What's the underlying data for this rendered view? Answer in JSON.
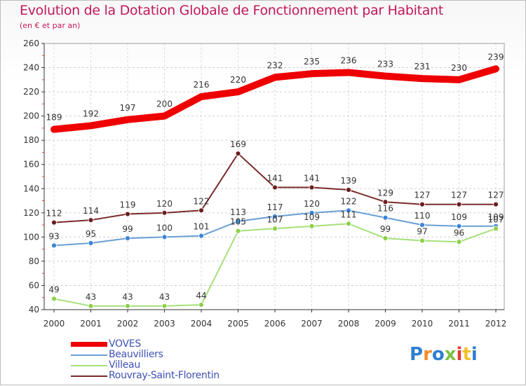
{
  "title": "Evolution de la Dotation Globale de Fonctionnement par Habitant",
  "subtitle": "(en € et par an)",
  "brand": {
    "text": "Proxiti",
    "colors": [
      "#2e7fd1",
      "#f28c28",
      "#2e7fd1",
      "#7cc243",
      "#e53935",
      "#f2c12e",
      "#2e7fd1"
    ]
  },
  "chart_data": {
    "type": "line",
    "title": "Evolution de la Dotation Globale de Fonctionnement par Habitant",
    "subtitle": "(en € et par an)",
    "xlabel": "",
    "ylabel": "",
    "x": [
      2000,
      2001,
      2002,
      2003,
      2004,
      2005,
      2006,
      2007,
      2008,
      2009,
      2010,
      2011,
      2012
    ],
    "x_labels": [
      "2000",
      "2001",
      "2002",
      "2003",
      "2004",
      "2005",
      "2006",
      "2007",
      "2008",
      "2009",
      "2010",
      "2011",
      "2012"
    ],
    "ylim": [
      40,
      260
    ],
    "yticks": [
      40,
      60,
      80,
      100,
      120,
      140,
      160,
      180,
      200,
      220,
      240,
      260
    ],
    "grid": true,
    "legend_position": "bottom-left",
    "series": [
      {
        "name": "VOVES",
        "color": "#ee0000",
        "markers": false,
        "values": [
          189,
          192,
          197,
          200,
          216,
          220,
          232,
          235,
          236,
          233,
          231,
          230,
          239
        ],
        "labels": [
          "189",
          "192",
          "197",
          "200",
          "216",
          "220",
          "232",
          "235",
          "236",
          "233",
          "231",
          "230",
          "239"
        ]
      },
      {
        "name": "Beauvilliers",
        "color": "#6a9fd4",
        "marker_color": "#3a86d6",
        "markers": true,
        "values": [
          93,
          95,
          99,
          100,
          101,
          113,
          117,
          120,
          122,
          116,
          110,
          109,
          109
        ],
        "labels": [
          "93",
          "95",
          "99",
          "100",
          "101",
          "113",
          "117",
          "120",
          "122",
          "116",
          "110",
          "109",
          "109"
        ]
      },
      {
        "name": "Villeau",
        "color": "#a6e07a",
        "marker_color": "#8ed04a",
        "markers": true,
        "values": [
          49,
          43,
          43,
          43,
          44,
          105,
          107,
          109,
          111,
          99,
          97,
          96,
          107
        ],
        "labels": [
          "49",
          "43",
          "43",
          "43",
          "44",
          "105",
          "107",
          "109",
          "111",
          "99",
          "97",
          "96",
          "107"
        ]
      },
      {
        "name": "Rouvray-Saint-Florentin",
        "color": "#7a2a2a",
        "marker_color": "#6b1f1f",
        "markers": true,
        "values": [
          112,
          114,
          119,
          120,
          122,
          169,
          141,
          141,
          139,
          129,
          127,
          127,
          127
        ],
        "labels": [
          "112",
          "114",
          "119",
          "120",
          "122",
          "169",
          "141",
          "141",
          "139",
          "129",
          "127",
          "127",
          "127"
        ]
      }
    ]
  }
}
